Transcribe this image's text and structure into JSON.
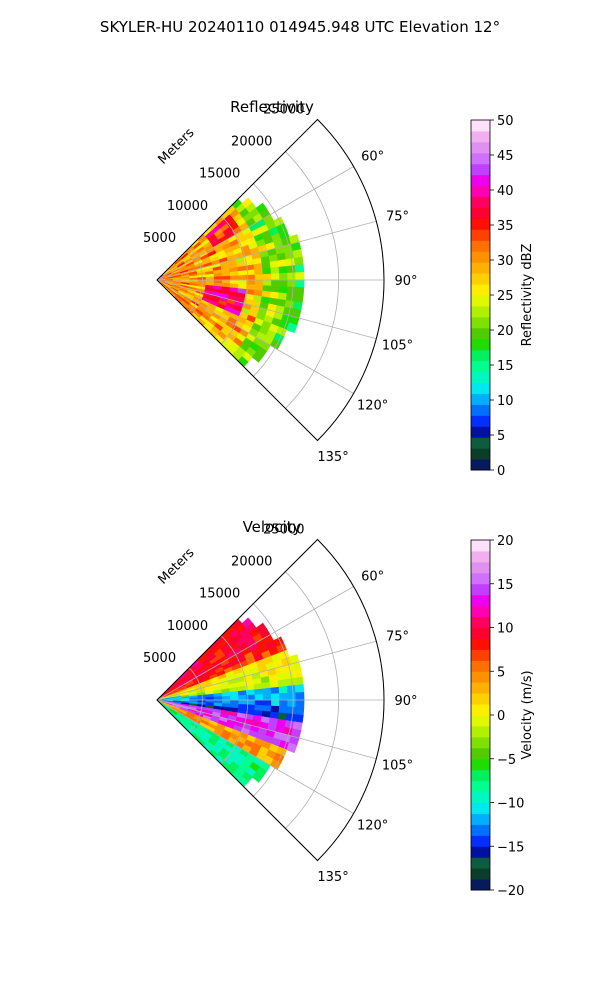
{
  "figure": {
    "title": "SKYLER-HU  20240110  014945.948 UTC Elevation 12°"
  },
  "chart_data": [
    {
      "type": "heatmap",
      "subtype": "polar-sector-ppi",
      "title": "Reflectivity",
      "radial_label": "Meters",
      "radial_ticks": [
        "5000",
        "10000",
        "15000",
        "20000",
        "25000"
      ],
      "radial_tick_values": [
        5000,
        10000,
        15000,
        20000,
        25000
      ],
      "radial_range": [
        0,
        25000
      ],
      "angle_ticks": [
        "60°",
        "75°",
        "90°",
        "105°",
        "120°",
        "135°"
      ],
      "angle_tick_values": [
        60,
        75,
        90,
        105,
        120,
        135
      ],
      "angle_range_deg": [
        45,
        135
      ],
      "grid": true,
      "colorbar": {
        "label": "Reflectivity dBZ",
        "range": [
          0,
          50
        ],
        "ticks": [
          "0",
          "5",
          "10",
          "15",
          "20",
          "25",
          "30",
          "35",
          "40",
          "45",
          "50"
        ],
        "tick_values": [
          0,
          5,
          10,
          15,
          20,
          25,
          30,
          35,
          40,
          45,
          50
        ],
        "colors": [
          "#081a5e",
          "#0a3d2a",
          "#0d5c3f",
          "#0010a0",
          "#0030ff",
          "#0070ff",
          "#00b0ff",
          "#00e8f0",
          "#00f8c0",
          "#00ff90",
          "#00f060",
          "#20dd00",
          "#50cc00",
          "#80e000",
          "#b0f000",
          "#e0f800",
          "#ffee00",
          "#ffd000",
          "#ffb000",
          "#ff9000",
          "#ff7000",
          "#ff4000",
          "#ff1000",
          "#ff0030",
          "#ff0060",
          "#ff00b0",
          "#ee00ee",
          "#c040ff",
          "#d070ff",
          "#e090ee",
          "#f0b0f0",
          "#fce0fc"
        ]
      },
      "echo_extent_m": 16000,
      "mean_dbz_pattern": "30 dBZ orange/red near radar, 35-40 dBZ magenta cores, 18-22 dBZ green at outer edge"
    },
    {
      "type": "heatmap",
      "subtype": "polar-sector-ppi",
      "title": "Velocity",
      "radial_label": "Meters",
      "radial_ticks": [
        "5000",
        "10000",
        "15000",
        "20000",
        "25000"
      ],
      "radial_tick_values": [
        5000,
        10000,
        15000,
        20000,
        25000
      ],
      "radial_range": [
        0,
        25000
      ],
      "angle_ticks": [
        "60°",
        "75°",
        "90°",
        "105°",
        "120°",
        "135°"
      ],
      "angle_tick_values": [
        60,
        75,
        90,
        105,
        120,
        135
      ],
      "angle_range_deg": [
        45,
        135
      ],
      "grid": true,
      "colorbar": {
        "label": "Velocity (m/s)",
        "range": [
          -20,
          20
        ],
        "ticks": [
          "−20",
          "−15",
          "−10",
          "−5",
          "0",
          "5",
          "10",
          "15",
          "20"
        ],
        "tick_values": [
          -20,
          -15,
          -10,
          -5,
          0,
          5,
          10,
          15,
          20
        ],
        "colors": [
          "#081a5e",
          "#0a3d2a",
          "#0d5c3f",
          "#0010a0",
          "#0030ff",
          "#0070ff",
          "#00b0ff",
          "#00e8f0",
          "#00f8c0",
          "#00ff90",
          "#00f060",
          "#20dd00",
          "#50cc00",
          "#80e000",
          "#b0f000",
          "#e0f800",
          "#ffee00",
          "#ffd000",
          "#ffb000",
          "#ff9000",
          "#ff7000",
          "#ff4000",
          "#ff1000",
          "#ff0030",
          "#ff0060",
          "#ff00b0",
          "#ee00ee",
          "#c040ff",
          "#d070ff",
          "#e090ee",
          "#f0b0f0",
          "#fce0fc"
        ]
      },
      "echo_extent_m": 16000,
      "mean_velocity_pattern": "+10 m/s (red/orange) at 45-70°, ~0 (yellow) at 70-85°, -10 to -15 (cyan) near 90-100°, +15 (magenta) band near 100-110°, -8 (green) beyond 115°"
    }
  ]
}
